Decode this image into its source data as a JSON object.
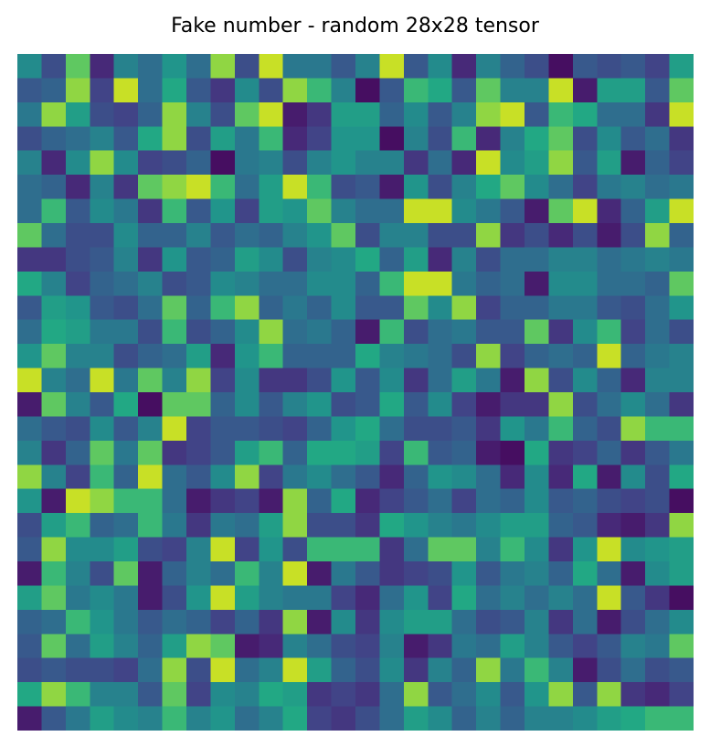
{
  "chart_data": {
    "type": "heatmap",
    "title": "Fake number - random 28x28 tensor",
    "xlabel": "",
    "ylabel": "",
    "axes_visible": false,
    "grid": false,
    "colormap": "viridis",
    "vmin": 0,
    "vmax": 1,
    "rows": 28,
    "cols": 28,
    "values": [
      [
        0.6,
        0.3,
        0.85,
        0.15,
        0.55,
        0.45,
        0.65,
        0.45,
        0.9,
        0.3,
        0.95,
        0.5,
        0.5,
        0.35,
        0.55,
        0.95,
        0.35,
        0.6,
        0.15,
        0.55,
        0.4,
        0.3,
        0.05,
        0.35,
        0.3,
        0.35,
        0.25,
        0.7
      ],
      [
        0.35,
        0.4,
        0.9,
        0.25,
        0.95,
        0.45,
        0.75,
        0.35,
        0.2,
        0.6,
        0.3,
        0.9,
        0.8,
        0.55,
        0.05,
        0.35,
        0.8,
        0.75,
        0.35,
        0.85,
        0.55,
        0.55,
        0.95,
        0.1,
        0.7,
        0.7,
        0.35,
        0.85
      ],
      [
        0.5,
        0.9,
        0.7,
        0.3,
        0.25,
        0.4,
        0.9,
        0.55,
        0.3,
        0.85,
        0.95,
        0.1,
        0.2,
        0.7,
        0.7,
        0.4,
        0.6,
        0.35,
        0.55,
        0.9,
        0.95,
        0.35,
        0.8,
        0.75,
        0.45,
        0.45,
        0.2,
        0.95
      ],
      [
        0.3,
        0.4,
        0.45,
        0.55,
        0.35,
        0.75,
        0.9,
        0.3,
        0.7,
        0.5,
        0.8,
        0.15,
        0.25,
        0.65,
        0.65,
        0.05,
        0.55,
        0.3,
        0.8,
        0.15,
        0.55,
        0.75,
        0.85,
        0.3,
        0.6,
        0.35,
        0.45,
        0.2
      ],
      [
        0.55,
        0.15,
        0.6,
        0.9,
        0.6,
        0.25,
        0.3,
        0.4,
        0.05,
        0.5,
        0.55,
        0.3,
        0.55,
        0.65,
        0.55,
        0.55,
        0.2,
        0.45,
        0.15,
        0.95,
        0.6,
        0.7,
        0.9,
        0.35,
        0.7,
        0.1,
        0.4,
        0.25
      ],
      [
        0.45,
        0.4,
        0.15,
        0.55,
        0.2,
        0.85,
        0.9,
        0.95,
        0.8,
        0.45,
        0.7,
        0.95,
        0.8,
        0.3,
        0.35,
        0.1,
        0.65,
        0.3,
        0.55,
        0.75,
        0.85,
        0.6,
        0.45,
        0.25,
        0.5,
        0.55,
        0.45,
        0.5
      ],
      [
        0.45,
        0.8,
        0.35,
        0.6,
        0.5,
        0.2,
        0.8,
        0.35,
        0.65,
        0.25,
        0.7,
        0.65,
        0.85,
        0.55,
        0.45,
        0.45,
        0.95,
        0.95,
        0.6,
        0.5,
        0.35,
        0.1,
        0.85,
        0.95,
        0.15,
        0.4,
        0.7,
        0.95
      ],
      [
        0.85,
        0.45,
        0.3,
        0.3,
        0.6,
        0.4,
        0.4,
        0.55,
        0.35,
        0.45,
        0.4,
        0.55,
        0.65,
        0.85,
        0.3,
        0.55,
        0.55,
        0.3,
        0.3,
        0.9,
        0.2,
        0.3,
        0.15,
        0.3,
        0.1,
        0.3,
        0.9,
        0.4
      ],
      [
        0.2,
        0.2,
        0.3,
        0.35,
        0.55,
        0.2,
        0.65,
        0.35,
        0.4,
        0.7,
        0.6,
        0.3,
        0.55,
        0.6,
        0.75,
        0.4,
        0.7,
        0.15,
        0.55,
        0.3,
        0.45,
        0.45,
        0.55,
        0.55,
        0.45,
        0.5,
        0.55,
        0.5
      ],
      [
        0.75,
        0.55,
        0.25,
        0.4,
        0.45,
        0.55,
        0.3,
        0.35,
        0.6,
        0.55,
        0.45,
        0.45,
        0.6,
        0.6,
        0.4,
        0.8,
        0.95,
        0.95,
        0.5,
        0.4,
        0.45,
        0.1,
        0.6,
        0.6,
        0.45,
        0.45,
        0.4,
        0.85
      ],
      [
        0.35,
        0.7,
        0.65,
        0.35,
        0.3,
        0.45,
        0.85,
        0.4,
        0.8,
        0.9,
        0.4,
        0.5,
        0.4,
        0.6,
        0.35,
        0.35,
        0.85,
        0.6,
        0.9,
        0.25,
        0.4,
        0.4,
        0.5,
        0.5,
        0.35,
        0.3,
        0.45,
        0.65
      ],
      [
        0.45,
        0.75,
        0.7,
        0.5,
        0.5,
        0.3,
        0.8,
        0.3,
        0.4,
        0.6,
        0.9,
        0.45,
        0.5,
        0.4,
        0.1,
        0.8,
        0.3,
        0.45,
        0.5,
        0.35,
        0.35,
        0.85,
        0.2,
        0.6,
        0.8,
        0.25,
        0.45,
        0.3
      ],
      [
        0.65,
        0.85,
        0.55,
        0.55,
        0.3,
        0.4,
        0.45,
        0.7,
        0.15,
        0.65,
        0.8,
        0.4,
        0.4,
        0.4,
        0.75,
        0.55,
        0.5,
        0.45,
        0.3,
        0.9,
        0.25,
        0.4,
        0.45,
        0.4,
        0.95,
        0.4,
        0.5,
        0.55
      ],
      [
        0.95,
        0.55,
        0.45,
        0.95,
        0.5,
        0.85,
        0.55,
        0.9,
        0.25,
        0.6,
        0.2,
        0.2,
        0.3,
        0.65,
        0.35,
        0.6,
        0.2,
        0.45,
        0.7,
        0.5,
        0.1,
        0.9,
        0.3,
        0.6,
        0.4,
        0.15,
        0.55,
        0.55
      ],
      [
        0.1,
        0.85,
        0.55,
        0.35,
        0.75,
        0.05,
        0.85,
        0.85,
        0.4,
        0.6,
        0.35,
        0.55,
        0.65,
        0.3,
        0.35,
        0.75,
        0.35,
        0.6,
        0.25,
        0.1,
        0.2,
        0.2,
        0.9,
        0.3,
        0.45,
        0.6,
        0.45,
        0.2
      ],
      [
        0.45,
        0.35,
        0.3,
        0.6,
        0.35,
        0.55,
        0.95,
        0.25,
        0.35,
        0.35,
        0.3,
        0.25,
        0.4,
        0.65,
        0.75,
        0.45,
        0.3,
        0.3,
        0.35,
        0.2,
        0.65,
        0.5,
        0.8,
        0.4,
        0.3,
        0.9,
        0.8,
        0.8
      ],
      [
        0.55,
        0.2,
        0.4,
        0.85,
        0.5,
        0.85,
        0.2,
        0.25,
        0.35,
        0.7,
        0.8,
        0.4,
        0.75,
        0.75,
        0.7,
        0.25,
        0.8,
        0.35,
        0.4,
        0.1,
        0.05,
        0.75,
        0.2,
        0.25,
        0.4,
        0.2,
        0.35,
        0.5
      ],
      [
        0.9,
        0.55,
        0.25,
        0.8,
        0.4,
        0.95,
        0.45,
        0.35,
        0.6,
        0.9,
        0.25,
        0.5,
        0.6,
        0.45,
        0.35,
        0.15,
        0.4,
        0.65,
        0.6,
        0.45,
        0.15,
        0.6,
        0.15,
        0.75,
        0.1,
        0.6,
        0.3,
        0.75
      ],
      [
        0.65,
        0.1,
        0.95,
        0.9,
        0.8,
        0.8,
        0.45,
        0.1,
        0.2,
        0.25,
        0.1,
        0.9,
        0.4,
        0.75,
        0.15,
        0.25,
        0.35,
        0.45,
        0.25,
        0.45,
        0.4,
        0.6,
        0.35,
        0.4,
        0.3,
        0.25,
        0.3,
        0.05
      ],
      [
        0.3,
        0.7,
        0.8,
        0.4,
        0.45,
        0.8,
        0.5,
        0.2,
        0.5,
        0.45,
        0.7,
        0.9,
        0.3,
        0.3,
        0.2,
        0.75,
        0.65,
        0.55,
        0.5,
        0.6,
        0.7,
        0.7,
        0.4,
        0.35,
        0.15,
        0.1,
        0.2,
        0.9
      ],
      [
        0.35,
        0.9,
        0.6,
        0.6,
        0.7,
        0.3,
        0.25,
        0.55,
        0.95,
        0.25,
        0.65,
        0.3,
        0.8,
        0.8,
        0.8,
        0.2,
        0.45,
        0.85,
        0.85,
        0.55,
        0.8,
        0.6,
        0.2,
        0.65,
        0.95,
        0.6,
        0.65,
        0.7
      ],
      [
        0.1,
        0.8,
        0.55,
        0.3,
        0.85,
        0.1,
        0.4,
        0.55,
        0.45,
        0.8,
        0.55,
        0.95,
        0.1,
        0.5,
        0.35,
        0.2,
        0.25,
        0.3,
        0.65,
        0.35,
        0.5,
        0.55,
        0.4,
        0.75,
        0.45,
        0.1,
        0.6,
        0.7
      ],
      [
        0.7,
        0.85,
        0.5,
        0.6,
        0.5,
        0.1,
        0.3,
        0.65,
        0.95,
        0.7,
        0.55,
        0.5,
        0.5,
        0.25,
        0.15,
        0.45,
        0.65,
        0.25,
        0.75,
        0.45,
        0.55,
        0.45,
        0.55,
        0.45,
        0.95,
        0.35,
        0.2,
        0.05
      ],
      [
        0.4,
        0.45,
        0.8,
        0.65,
        0.5,
        0.35,
        0.45,
        0.4,
        0.25,
        0.4,
        0.2,
        0.9,
        0.1,
        0.6,
        0.2,
        0.6,
        0.7,
        0.7,
        0.45,
        0.3,
        0.35,
        0.55,
        0.2,
        0.45,
        0.1,
        0.3,
        0.45,
        0.6
      ],
      [
        0.35,
        0.85,
        0.45,
        0.7,
        0.55,
        0.4,
        0.7,
        0.9,
        0.85,
        0.1,
        0.15,
        0.55,
        0.45,
        0.3,
        0.25,
        0.55,
        0.1,
        0.2,
        0.5,
        0.45,
        0.7,
        0.55,
        0.35,
        0.25,
        0.35,
        0.55,
        0.5,
        0.85
      ],
      [
        0.3,
        0.35,
        0.3,
        0.3,
        0.25,
        0.45,
        0.9,
        0.3,
        0.95,
        0.45,
        0.55,
        0.95,
        0.7,
        0.4,
        0.3,
        0.6,
        0.2,
        0.55,
        0.4,
        0.9,
        0.5,
        0.8,
        0.55,
        0.1,
        0.3,
        0.45,
        0.3,
        0.35
      ],
      [
        0.75,
        0.9,
        0.8,
        0.55,
        0.55,
        0.35,
        0.85,
        0.25,
        0.6,
        0.55,
        0.75,
        0.7,
        0.2,
        0.25,
        0.2,
        0.45,
        0.9,
        0.35,
        0.45,
        0.6,
        0.35,
        0.65,
        0.9,
        0.35,
        0.9,
        0.2,
        0.15,
        0.25
      ],
      [
        0.1,
        0.35,
        0.5,
        0.7,
        0.6,
        0.55,
        0.8,
        0.55,
        0.65,
        0.45,
        0.55,
        0.75,
        0.25,
        0.2,
        0.3,
        0.45,
        0.7,
        0.6,
        0.4,
        0.55,
        0.4,
        0.55,
        0.55,
        0.6,
        0.7,
        0.75,
        0.8,
        0.8
      ]
    ]
  }
}
